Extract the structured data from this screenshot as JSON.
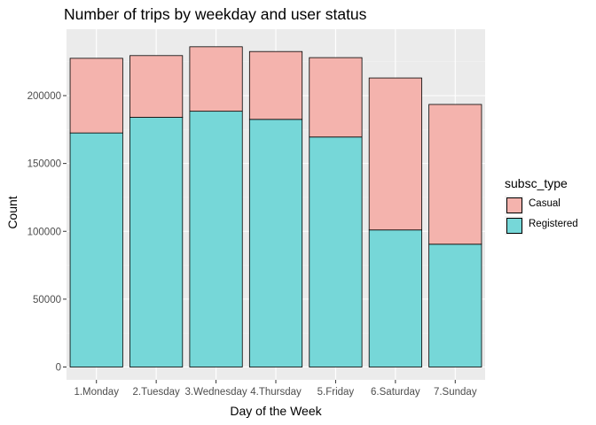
{
  "chart_data": {
    "type": "bar",
    "stacked": true,
    "title": "Number of trips by weekday and user status",
    "xlabel": "Day of the Week",
    "ylabel": "Count",
    "categories": [
      "1.Monday",
      "2.Tuesday",
      "3.Wednesday",
      "4.Thursday",
      "5.Friday",
      "6.Saturday",
      "7.Sunday"
    ],
    "series": [
      {
        "name": "Registered",
        "color": "#76d7d8",
        "values": [
          172500,
          184000,
          188500,
          182500,
          169500,
          101000,
          90500
        ]
      },
      {
        "name": "Casual",
        "color": "#f4b3ad",
        "values": [
          55000,
          45500,
          47500,
          50000,
          58500,
          112000,
          103000
        ]
      }
    ],
    "ylim": [
      0,
      242000
    ],
    "yticks": [
      0,
      50000,
      100000,
      150000,
      200000
    ],
    "grid": true,
    "legend": {
      "title": "subsc_type",
      "position": "right",
      "order": [
        "Casual",
        "Registered"
      ]
    },
    "colors": {
      "panel": "#ebebeb",
      "grid_major": "#ffffff",
      "grid_minor": "#f2f2f2",
      "bar_outline": "#000000"
    }
  }
}
